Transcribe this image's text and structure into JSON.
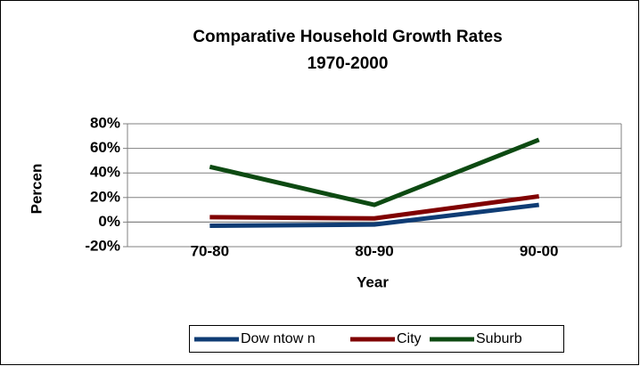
{
  "chart_data": {
    "type": "line",
    "title": "Comparative Household Growth Rates",
    "subtitle": "1970-2000",
    "x_label": "Year",
    "y_label": "Percen",
    "categories": [
      "70-80",
      "80-90",
      "90-00"
    ],
    "series": [
      {
        "name": "Dow ntow n",
        "color": "#0f3c74",
        "values": [
          -3,
          -2,
          14
        ]
      },
      {
        "name": "City",
        "color": "#800000",
        "values": [
          4,
          3,
          21
        ]
      },
      {
        "name": "Suburb",
        "color": "#0d4a12",
        "values": [
          45,
          14,
          67
        ]
      }
    ],
    "ylim": [
      -20,
      80
    ],
    "yticks": [
      {
        "value": -20,
        "label": "-20%"
      },
      {
        "value": 0,
        "label": "0%"
      },
      {
        "value": 20,
        "label": "20%"
      },
      {
        "value": 40,
        "label": "40%"
      },
      {
        "value": 60,
        "label": "60%"
      },
      {
        "value": 80,
        "label": "80%"
      }
    ],
    "grid": true,
    "legend": "bottom"
  }
}
